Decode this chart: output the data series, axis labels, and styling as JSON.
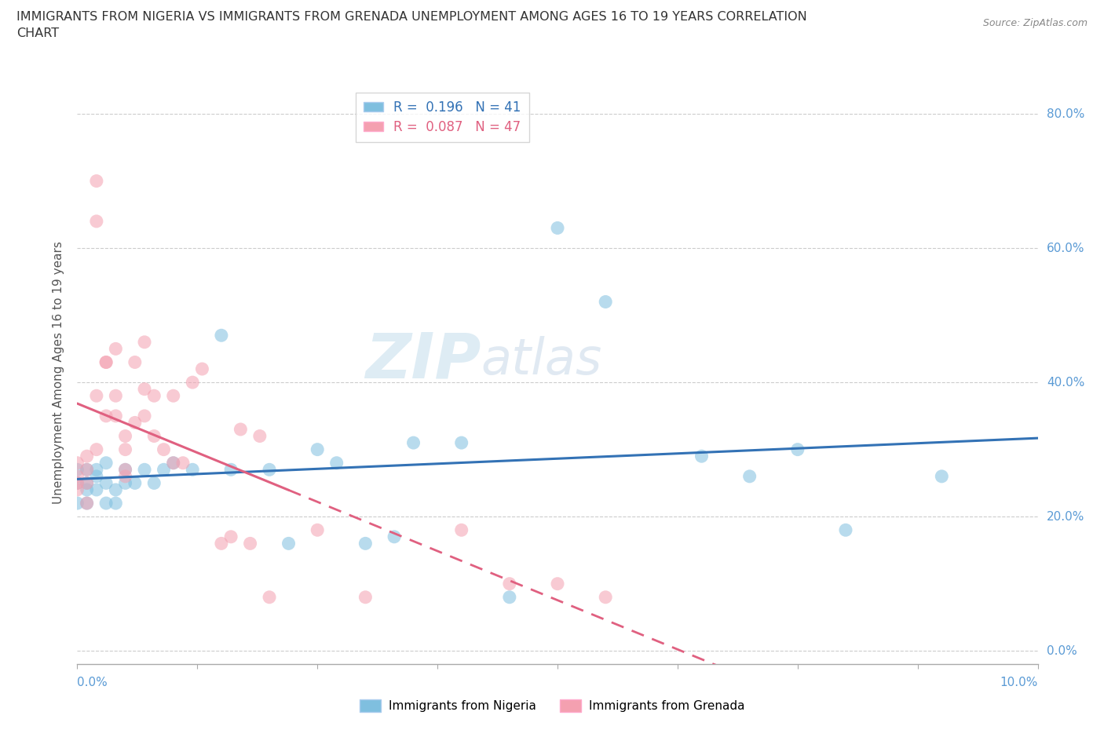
{
  "title_line1": "IMMIGRANTS FROM NIGERIA VS IMMIGRANTS FROM GRENADA UNEMPLOYMENT AMONG AGES 16 TO 19 YEARS CORRELATION",
  "title_line2": "CHART",
  "source": "Source: ZipAtlas.com",
  "ylabel": "Unemployment Among Ages 16 to 19 years",
  "legend1_r": "0.196",
  "legend1_n": "41",
  "legend2_r": "0.087",
  "legend2_n": "47",
  "color_nigeria": "#7fbfdf",
  "color_grenada": "#f4a0b0",
  "color_nigeria_line": "#3372b5",
  "color_grenada_line": "#e06080",
  "nigeria_x": [
    0.0,
    0.0,
    0.0,
    0.001,
    0.001,
    0.001,
    0.001,
    0.002,
    0.002,
    0.002,
    0.003,
    0.003,
    0.003,
    0.004,
    0.004,
    0.005,
    0.005,
    0.006,
    0.007,
    0.008,
    0.009,
    0.01,
    0.012,
    0.015,
    0.016,
    0.02,
    0.022,
    0.025,
    0.027,
    0.03,
    0.033,
    0.035,
    0.04,
    0.045,
    0.05,
    0.055,
    0.065,
    0.07,
    0.075,
    0.08,
    0.09
  ],
  "nigeria_y": [
    0.22,
    0.25,
    0.27,
    0.22,
    0.24,
    0.27,
    0.25,
    0.24,
    0.26,
    0.27,
    0.22,
    0.25,
    0.28,
    0.24,
    0.22,
    0.25,
    0.27,
    0.25,
    0.27,
    0.25,
    0.27,
    0.28,
    0.27,
    0.47,
    0.27,
    0.27,
    0.16,
    0.3,
    0.28,
    0.16,
    0.17,
    0.31,
    0.31,
    0.08,
    0.63,
    0.52,
    0.29,
    0.26,
    0.3,
    0.18,
    0.26
  ],
  "grenada_x": [
    0.0,
    0.0,
    0.0,
    0.0,
    0.001,
    0.001,
    0.001,
    0.001,
    0.002,
    0.002,
    0.002,
    0.002,
    0.003,
    0.003,
    0.003,
    0.004,
    0.004,
    0.004,
    0.005,
    0.005,
    0.005,
    0.005,
    0.006,
    0.006,
    0.007,
    0.007,
    0.007,
    0.008,
    0.008,
    0.009,
    0.01,
    0.01,
    0.011,
    0.012,
    0.013,
    0.015,
    0.016,
    0.017,
    0.018,
    0.019,
    0.02,
    0.025,
    0.03,
    0.04,
    0.045,
    0.05,
    0.055
  ],
  "grenada_y": [
    0.28,
    0.26,
    0.25,
    0.24,
    0.29,
    0.27,
    0.25,
    0.22,
    0.7,
    0.64,
    0.38,
    0.3,
    0.43,
    0.43,
    0.35,
    0.45,
    0.38,
    0.35,
    0.32,
    0.3,
    0.27,
    0.26,
    0.43,
    0.34,
    0.46,
    0.39,
    0.35,
    0.38,
    0.32,
    0.3,
    0.38,
    0.28,
    0.28,
    0.4,
    0.42,
    0.16,
    0.17,
    0.33,
    0.16,
    0.32,
    0.08,
    0.18,
    0.08,
    0.18,
    0.1,
    0.1,
    0.08
  ],
  "xmin": 0.0,
  "xmax": 0.1,
  "ymin": -0.02,
  "ymax": 0.85,
  "yticks": [
    0.0,
    0.2,
    0.4,
    0.6,
    0.8
  ],
  "ytick_labels": [
    "0.0%",
    "20.0%",
    "40.0%",
    "60.0%",
    "80.0%"
  ],
  "watermark_zip": "ZIP",
  "watermark_atlas": "atlas",
  "background_color": "#ffffff",
  "grid_color": "#cccccc",
  "axis_color": "#aaaaaa",
  "tick_color": "#5b9bd5"
}
